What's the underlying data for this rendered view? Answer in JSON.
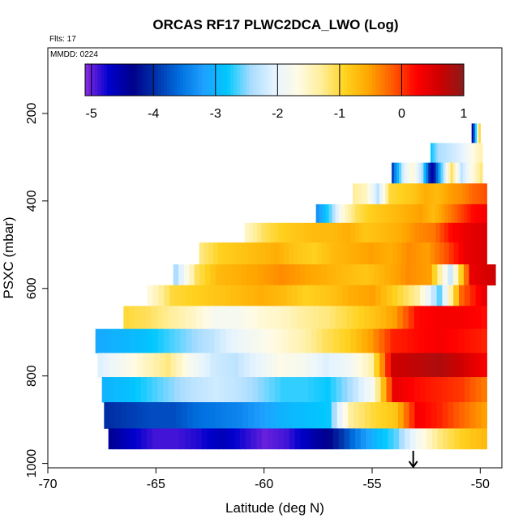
{
  "chart_data": {
    "type": "heatmap",
    "title": "ORCAS RF17 PLWC2DCA_LWO (Log)",
    "flights_label": "Flts: 17",
    "date_label": "MMDD: 0224",
    "xlabel": "Latitude (deg N)",
    "ylabel": "PSXC (mbar)",
    "xlim": [
      -70,
      -49
    ],
    "ylim": [
      1010,
      50
    ],
    "x_ticks": [
      -70,
      -65,
      -60,
      -55,
      -50
    ],
    "y_ticks": [
      200,
      400,
      600,
      800,
      1000
    ],
    "colorbar": {
      "range": [
        -5.1,
        1
      ],
      "ticks": [
        -5,
        -4,
        -3,
        -2,
        -1,
        0,
        1
      ],
      "colors": [
        "#8a2be2",
        "#0000cd",
        "#00008b",
        "#0033aa",
        "#0070e0",
        "#1ea0ff",
        "#00c8ff",
        "#a8dcff",
        "#e6f4ff",
        "#fffbe6",
        "#ffee99",
        "#ffd21e",
        "#ffa500",
        "#ff5a00",
        "#ff0000",
        "#cd0000",
        "#8b1a1a"
      ]
    },
    "arrow_latitude": -53.1,
    "layers": [
      {
        "p": 950,
        "x0": -67.2,
        "x1": -49.7,
        "values": [
          -4.4,
          -4.7,
          -4.9,
          -4.9,
          -4.8,
          -4.6,
          -4.8,
          -5.0,
          -4.9,
          -4.6,
          -4.3,
          -3.6,
          -3.0,
          -2.6,
          -1.8,
          -1.2,
          -0.9,
          -0.7
        ]
      },
      {
        "p": 890,
        "x0": -67.4,
        "x1": -49.7,
        "values": [
          -4.0,
          -3.9,
          -3.8,
          -3.8,
          -3.6,
          -3.5,
          -3.4,
          -3.2,
          -3.0,
          -2.9,
          -2.8,
          -1.3,
          -1.0,
          -0.8,
          0.3,
          0.1,
          -0.2,
          -0.5
        ]
      },
      {
        "p": 830,
        "x0": -67.5,
        "x1": -49.7,
        "values": [
          -3.0,
          -2.9,
          -2.7,
          -2.5,
          -2.3,
          -2.2,
          -2.3,
          -2.5,
          -2.7,
          -2.7,
          -2.8,
          -2.4,
          -1.8,
          0.4,
          0.2,
          0.1,
          0.0,
          -0.3
        ]
      },
      {
        "p": 775,
        "x0": -67.7,
        "x1": -49.7,
        "values": [
          -2.1,
          -1.8,
          -1.5,
          -1.2,
          -1.8,
          -2.2,
          -2.3,
          -2.0,
          -1.7,
          -1.8,
          -2.1,
          -1.9,
          -1.4,
          0.6,
          0.7,
          0.8,
          0.6,
          0.3
        ]
      },
      {
        "p": 720,
        "x0": -67.8,
        "x1": -49.7,
        "values": [
          -3.1,
          -3.0,
          -2.9,
          -2.7,
          -2.5,
          -2.3,
          -2.0,
          -1.8,
          -1.6,
          -1.4,
          -1.1,
          -0.9,
          -0.5,
          0.1,
          0.2,
          0.3,
          0.2,
          0.1
        ]
      },
      {
        "p": 665,
        "x0": -66.5,
        "x1": -49.7,
        "values": [
          -1.0,
          -1.1,
          -1.3,
          -1.5,
          -1.8,
          -1.8,
          -1.6,
          -1.5,
          -1.3,
          -1.2,
          -1.0,
          -0.8,
          -0.5,
          0.2,
          0.3,
          0.3,
          0.2
        ]
      },
      {
        "p": 615,
        "x0": -65.4,
        "x1": -49.7,
        "values": [
          -1.6,
          -1.0,
          -0.9,
          -0.8,
          -0.7,
          -0.6,
          -0.7,
          -0.9,
          -0.8,
          -0.6,
          -0.5,
          -0.9,
          -1.3,
          -2.6,
          -0.2,
          0.4
        ]
      },
      {
        "p": 570,
        "x0": -64.2,
        "x1": -49.3,
        "values": [
          -2.4,
          -1.1,
          -0.7,
          -0.6,
          -0.5,
          -0.4,
          -0.5,
          -0.6,
          -0.7,
          -0.8,
          -0.6,
          -0.4,
          -0.5,
          -2.2,
          0.4,
          0.6
        ]
      },
      {
        "p": 520,
        "x0": -63.0,
        "x1": -49.7,
        "values": [
          -1.2,
          -0.9,
          -0.8,
          -0.7,
          -0.6,
          -0.8,
          -0.9,
          -0.7,
          -0.6,
          -0.5,
          -0.6,
          -0.4,
          -0.5,
          -0.1,
          0.4,
          0.5
        ]
      },
      {
        "p": 470,
        "x0": -60.9,
        "x1": -49.7,
        "values": [
          -1.5,
          -1.1,
          -0.9,
          -0.8,
          -0.7,
          -0.7,
          -0.6,
          -0.8,
          -0.7,
          -0.6,
          -0.4,
          -0.3,
          0.2,
          0.4,
          0.5
        ]
      },
      {
        "p": 430,
        "x0": -57.6,
        "x1": -49.7,
        "values": [
          -3.3,
          -2.6,
          -1.6,
          -1.1,
          -0.9,
          -0.8,
          -0.7,
          -0.6,
          -0.5,
          -0.7,
          -0.4,
          -0.1,
          0.2,
          0.3
        ]
      },
      {
        "p": 385,
        "x0": -55.9,
        "x1": -49.7,
        "values": [
          -1.3,
          -1.5,
          -2.3,
          -1.0,
          -0.9,
          -0.8,
          -0.6,
          -0.7,
          -0.5,
          -0.4,
          -0.2,
          -0.1
        ]
      },
      {
        "p": 335,
        "x0": -54.1,
        "x1": -49.9,
        "values": [
          -3.8,
          -2.2,
          -1.6,
          -2.4,
          -4.6,
          -2.6,
          -1.1,
          -2.3,
          -1.7,
          -1.2
        ]
      },
      {
        "p": 290,
        "x0": -52.3,
        "x1": -49.9,
        "values": [
          -2.8,
          -2.4,
          -2.3,
          -2.2,
          -2.1,
          -1.9,
          -1.6,
          -1.4
        ]
      },
      {
        "p": 245,
        "x0": -50.4,
        "x1": -50.0,
        "values": [
          -4.5,
          -1.0
        ]
      }
    ]
  }
}
